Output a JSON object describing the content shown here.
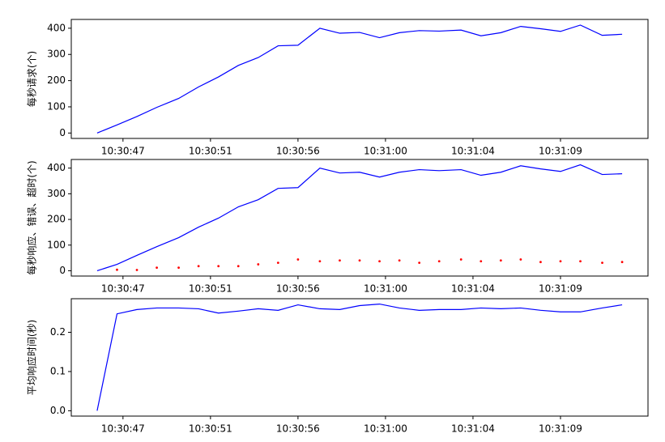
{
  "chart_data": [
    {
      "type": "line",
      "ylabel": "每秒请求(个)",
      "x": [
        "10:30:46.0",
        "10:30:47.0",
        "10:30:48.0",
        "10:30:49.0",
        "10:30:50.1",
        "10:30:51.1",
        "10:30:52.1",
        "10:30:53.1",
        "10:30:54.1",
        "10:30:55.1",
        "10:30:56.1",
        "10:30:57.2",
        "10:30:58.2",
        "10:30:59.2",
        "10:31:00.2",
        "10:31:01.2",
        "10:31:02.2",
        "10:31:03.2",
        "10:31:04.3",
        "10:31:05.3",
        "10:31:06.3",
        "10:31:07.3",
        "10:31:08.3",
        "10:31:09.3",
        "10:31:10.3",
        "10:31:11.4",
        "10:31:12.4"
      ],
      "series": [
        {
          "color": "#0000ff",
          "style": "line",
          "values": [
            0,
            31,
            63,
            98,
            132,
            176,
            214,
            258,
            288,
            333,
            335,
            400,
            381,
            384,
            364,
            383,
            391,
            389,
            393,
            371,
            383,
            407,
            398,
            388,
            412,
            373,
            377
          ]
        }
      ],
      "xlim": [
        "10:30:44.7",
        "10:31:13.7"
      ],
      "xticks": [
        {
          "value": "10:30:47.3",
          "label": "10:30:47"
        },
        {
          "value": "10:30:51.7",
          "label": "10:30:51"
        },
        {
          "value": "10:30:56.1",
          "label": "10:30:56"
        },
        {
          "value": "10:31:00.5",
          "label": "10:31:00"
        },
        {
          "value": "10:31:04.9",
          "label": "10:31:04"
        },
        {
          "value": "10:31:09.3",
          "label": "10:31:09"
        }
      ],
      "ylim": [
        -20.6,
        433.6
      ],
      "yticks": [
        0,
        100,
        200,
        300,
        400
      ]
    },
    {
      "type": "line",
      "ylabel": "每秒响应、错误、超时(个)",
      "x": [
        "10:30:46.0",
        "10:30:47.0",
        "10:30:48.0",
        "10:30:49.0",
        "10:30:50.1",
        "10:30:51.1",
        "10:30:52.1",
        "10:30:53.1",
        "10:30:54.1",
        "10:30:55.1",
        "10:30:56.1",
        "10:30:57.2",
        "10:30:58.2",
        "10:30:59.2",
        "10:31:00.2",
        "10:31:01.2",
        "10:31:02.2",
        "10:31:03.2",
        "10:31:04.3",
        "10:31:05.3",
        "10:31:06.3",
        "10:31:07.3",
        "10:31:08.3",
        "10:31:09.3",
        "10:31:10.3",
        "10:31:11.4",
        "10:31:12.4"
      ],
      "series": [
        {
          "color": "#0000ff",
          "style": "line",
          "values": [
            0,
            25,
            60,
            94,
            129,
            170,
            205,
            249,
            277,
            321,
            324,
            400,
            381,
            384,
            365,
            384,
            394,
            390,
            394,
            372,
            384,
            409,
            397,
            387,
            413,
            375,
            378
          ]
        },
        {
          "color": "#ff0000",
          "style": "dots",
          "values": [
            null,
            4,
            3,
            12,
            12,
            18,
            18,
            18,
            25,
            31,
            44,
            37,
            40,
            40,
            37,
            40,
            31,
            37,
            44,
            37,
            40,
            44,
            34,
            37,
            37,
            31,
            34
          ]
        }
      ],
      "xlim": [
        "10:30:44.7",
        "10:31:13.7"
      ],
      "xticks": [
        {
          "value": "10:30:47.3",
          "label": "10:30:47"
        },
        {
          "value": "10:30:51.7",
          "label": "10:30:51"
        },
        {
          "value": "10:30:56.1",
          "label": "10:30:56"
        },
        {
          "value": "10:31:00.5",
          "label": "10:31:00"
        },
        {
          "value": "10:31:04.9",
          "label": "10:31:04"
        },
        {
          "value": "10:31:09.3",
          "label": "10:31:09"
        }
      ],
      "ylim": [
        -20.6,
        433.6
      ],
      "yticks": [
        0,
        100,
        200,
        300,
        400
      ]
    },
    {
      "type": "line",
      "ylabel": "平均响应时间(秒)",
      "x": [
        "10:30:46.0",
        "10:30:47.0",
        "10:30:48.0",
        "10:30:49.0",
        "10:30:50.1",
        "10:30:51.1",
        "10:30:52.1",
        "10:30:53.1",
        "10:30:54.1",
        "10:30:55.1",
        "10:30:56.1",
        "10:30:57.2",
        "10:30:58.2",
        "10:30:59.2",
        "10:31:00.2",
        "10:31:01.2",
        "10:31:02.2",
        "10:31:03.2",
        "10:31:04.3",
        "10:31:05.3",
        "10:31:06.3",
        "10:31:07.3",
        "10:31:08.3",
        "10:31:09.3",
        "10:31:10.3",
        "10:31:11.4",
        "10:31:12.4"
      ],
      "series": [
        {
          "color": "#0000ff",
          "style": "line",
          "values": [
            0,
            0.247,
            0.258,
            0.262,
            0.262,
            0.26,
            0.249,
            0.254,
            0.26,
            0.256,
            0.27,
            0.26,
            0.258,
            0.268,
            0.272,
            0.262,
            0.256,
            0.258,
            0.258,
            0.262,
            0.26,
            0.262,
            0.256,
            0.252,
            0.252,
            0.262,
            0.27
          ]
        }
      ],
      "xlim": [
        "10:30:44.7",
        "10:31:13.7"
      ],
      "xticks": [
        {
          "value": "10:30:47.3",
          "label": "10:30:47"
        },
        {
          "value": "10:30:51.7",
          "label": "10:30:51"
        },
        {
          "value": "10:30:56.1",
          "label": "10:30:56"
        },
        {
          "value": "10:31:00.5",
          "label": "10:31:00"
        },
        {
          "value": "10:31:04.9",
          "label": "10:31:04"
        },
        {
          "value": "10:31:09.3",
          "label": "10:31:09"
        }
      ],
      "ylim": [
        -0.0136,
        0.2856
      ],
      "yticks": [
        {
          "value": 0,
          "label": "0.0"
        },
        0.1,
        0.2
      ]
    }
  ]
}
